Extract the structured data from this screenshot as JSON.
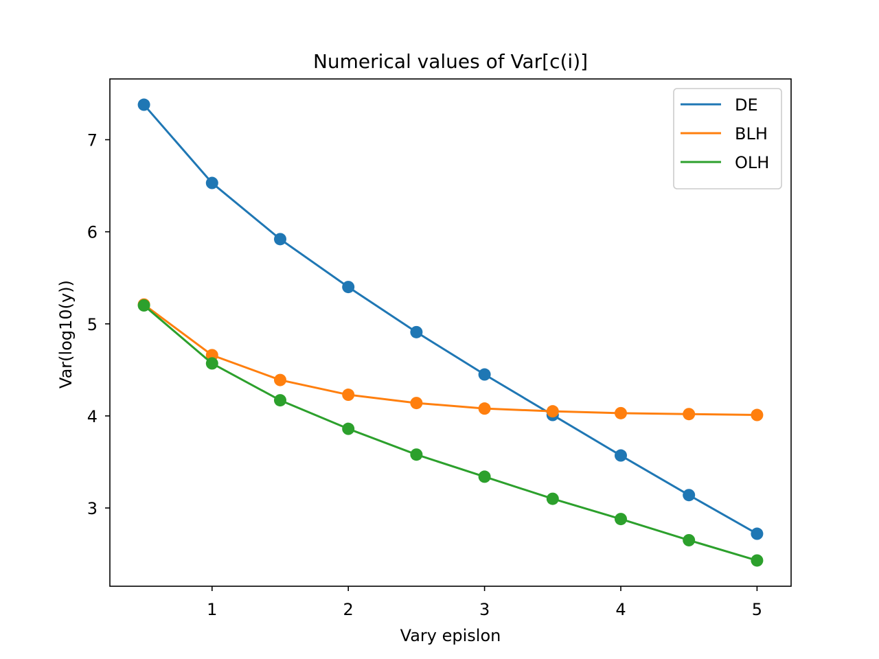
{
  "chart_data": {
    "type": "line",
    "title": "Numerical values of Var[c(i)]",
    "xlabel": "Vary epislon",
    "ylabel": "Var(log10(y))",
    "x": [
      0.5,
      1.0,
      1.5,
      2.0,
      2.5,
      3.0,
      3.5,
      4.0,
      4.5,
      5.0
    ],
    "xlim": [
      0.25,
      5.25
    ],
    "ylim": [
      2.15,
      7.66
    ],
    "xticks": [
      1,
      2,
      3,
      4,
      5
    ],
    "yticks": [
      3,
      4,
      5,
      6,
      7
    ],
    "grid": false,
    "legend_position": "top-right",
    "markers": true,
    "series": [
      {
        "name": "DE",
        "color": "#1f77b4",
        "values": [
          7.38,
          6.53,
          5.92,
          5.4,
          4.91,
          4.45,
          4.01,
          3.57,
          3.14,
          2.72
        ]
      },
      {
        "name": "BLH",
        "color": "#ff7f0e",
        "values": [
          5.21,
          4.66,
          4.39,
          4.23,
          4.14,
          4.08,
          4.05,
          4.03,
          4.02,
          4.01
        ]
      },
      {
        "name": "OLH",
        "color": "#2ca02c",
        "values": [
          5.2,
          4.57,
          4.17,
          3.86,
          3.58,
          3.34,
          3.1,
          2.88,
          2.65,
          2.43
        ]
      }
    ]
  }
}
